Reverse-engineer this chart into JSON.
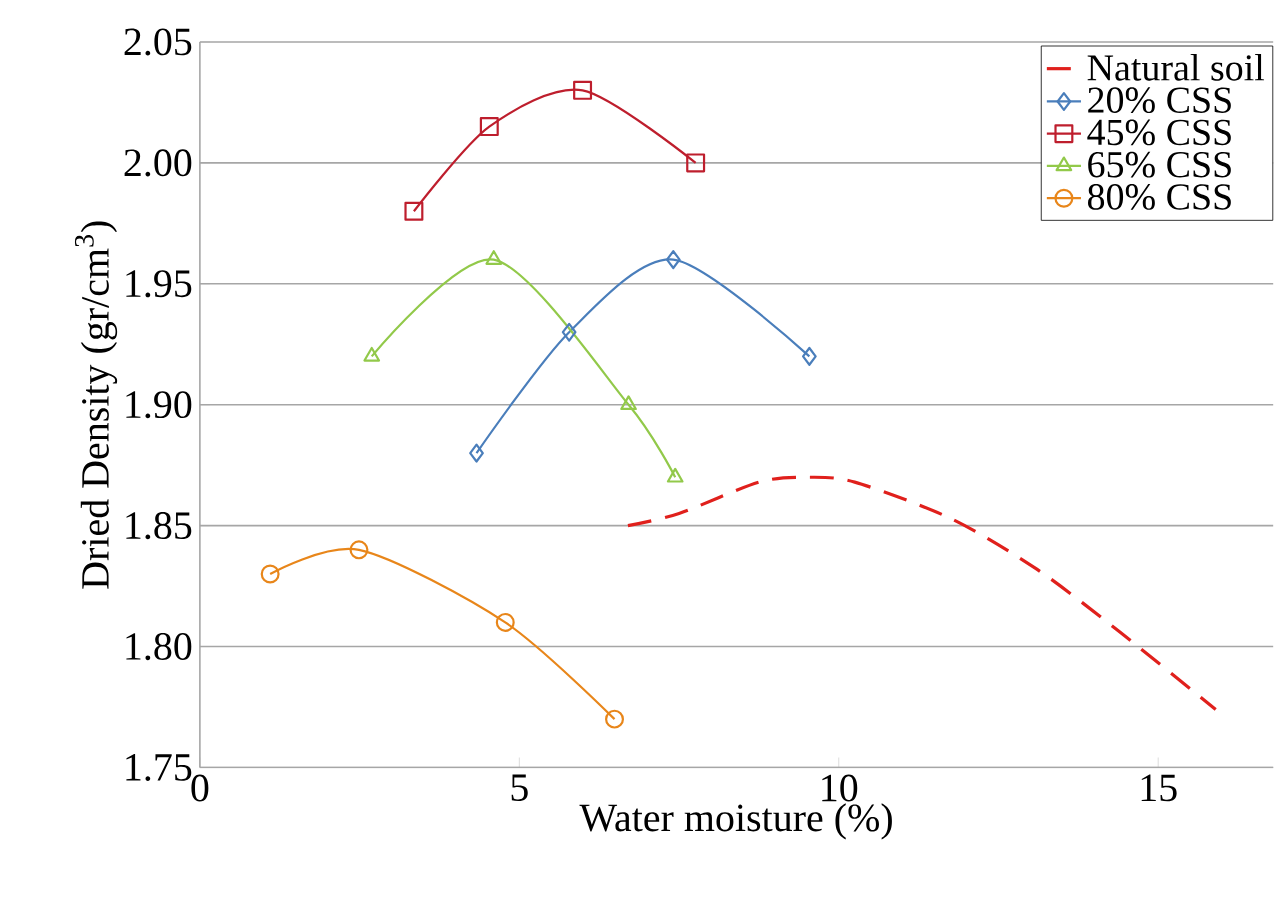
{
  "chart_data": {
    "type": "line",
    "xlabel": "Water moisture (%)",
    "ylabel": "Dried Density (gr/cm$^{3}$)",
    "xlim": [
      0,
      16.8
    ],
    "xticks": [
      0,
      5,
      10,
      15
    ],
    "ylim": [
      1.75,
      2.05
    ],
    "yticks": [
      1.75,
      {
        "value": 1.8,
        "label": "1.80"
      },
      1.85,
      {
        "value": 1.9,
        "label": "1.90"
      },
      1.95,
      {
        "value": 2.0,
        "label": "2.00"
      },
      2.05
    ],
    "grid": "y",
    "legend": "top right",
    "series": [
      {
        "name": "Natural soil",
        "color": "#e0201c",
        "marker": "none",
        "line_style": "dashed",
        "x": [
          6.7,
          7.5,
          8.75,
          9.5,
          10.25,
          11.75,
          13.1,
          14.4,
          15.9
        ],
        "values": [
          1.85,
          1.855,
          1.868,
          1.87,
          1.868,
          1.853,
          1.832,
          1.806,
          1.774
        ]
      },
      {
        "name": "20% CSS",
        "color": "#4a7ebb",
        "marker": "diamond",
        "line_style": "solid",
        "x": [
          4.33,
          5.78,
          7.41,
          9.54
        ],
        "values": [
          1.88,
          1.93,
          1.96,
          1.92
        ]
      },
      {
        "name": "45% CSS",
        "color": "#be1e2d",
        "marker": "square",
        "line_style": "solid",
        "x": [
          3.35,
          4.53,
          5.99,
          7.76
        ],
        "values": [
          1.98,
          2.015,
          2.03,
          2.0
        ]
      },
      {
        "name": "65% CSS",
        "color": "#92c94a",
        "marker": "triangle",
        "line_style": "solid",
        "x": [
          2.69,
          4.6,
          6.71,
          7.44
        ],
        "values": [
          1.92,
          1.96,
          1.9,
          1.87
        ]
      },
      {
        "name": "80% CSS",
        "color": "#e8861a",
        "marker": "circle",
        "line_style": "solid",
        "x": [
          1.1,
          2.49,
          4.78,
          6.49
        ],
        "values": [
          1.83,
          1.84,
          1.81,
          1.77
        ]
      }
    ]
  }
}
